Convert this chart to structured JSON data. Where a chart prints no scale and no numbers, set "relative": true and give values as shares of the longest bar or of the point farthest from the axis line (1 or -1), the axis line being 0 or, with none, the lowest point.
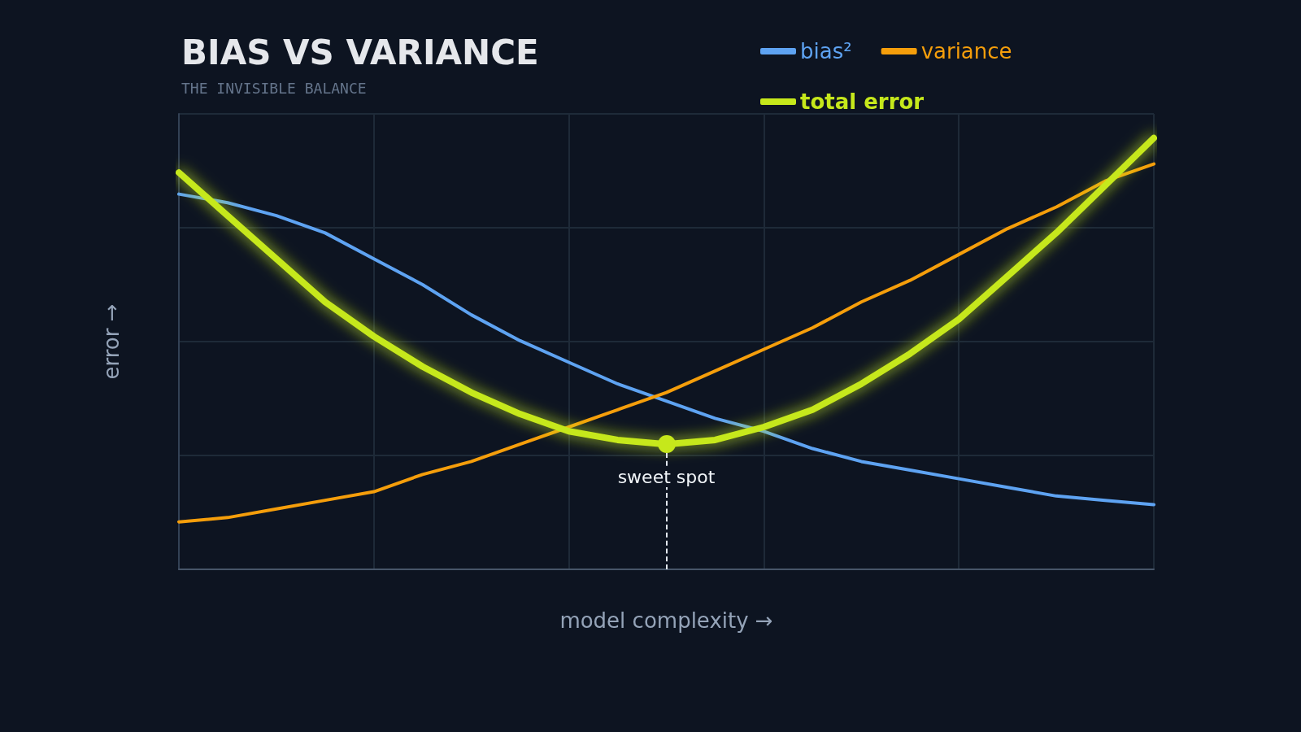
{
  "chart_data": {
    "type": "line",
    "title": "BIAS VS VARIANCE",
    "subtitle": "THE INVISIBLE BALANCE",
    "xlabel": "model complexity →",
    "ylabel": "error →",
    "categories": [
      null,
      null,
      null,
      null,
      null,
      null,
      null,
      null,
      null,
      null,
      null,
      null,
      null,
      null,
      null,
      null,
      null,
      null,
      null,
      null,
      null
    ],
    "relative": true,
    "grid": true,
    "legend": "top right",
    "marker": "none",
    "line_style": "solid",
    "annotations": [
      "sweet spot"
    ],
    "series": [
      {
        "name": "bias²",
        "color": "#5ea3f2",
        "values": [
          0.87,
          0.85,
          0.82,
          0.78,
          0.72,
          0.66,
          0.59,
          0.53,
          0.48,
          0.43,
          0.39,
          0.35,
          0.32,
          0.28,
          0.25,
          0.23,
          0.21,
          0.19,
          0.17,
          0.16,
          0.15
        ]
      },
      {
        "name": "variance",
        "color": "#f59e0b",
        "values": [
          0.11,
          0.12,
          0.14,
          0.16,
          0.18,
          0.22,
          0.25,
          0.29,
          0.33,
          0.37,
          0.41,
          0.46,
          0.51,
          0.56,
          0.62,
          0.67,
          0.73,
          0.79,
          0.84,
          0.9,
          0.94
        ]
      },
      {
        "name": "total error",
        "color": "#c6e81b",
        "values": [
          0.92,
          0.82,
          0.72,
          0.62,
          0.54,
          0.47,
          0.41,
          0.36,
          0.32,
          0.3,
          0.29,
          0.3,
          0.33,
          0.37,
          0.43,
          0.5,
          0.58,
          0.68,
          0.78,
          0.89,
          1
        ]
      }
    ]
  }
}
